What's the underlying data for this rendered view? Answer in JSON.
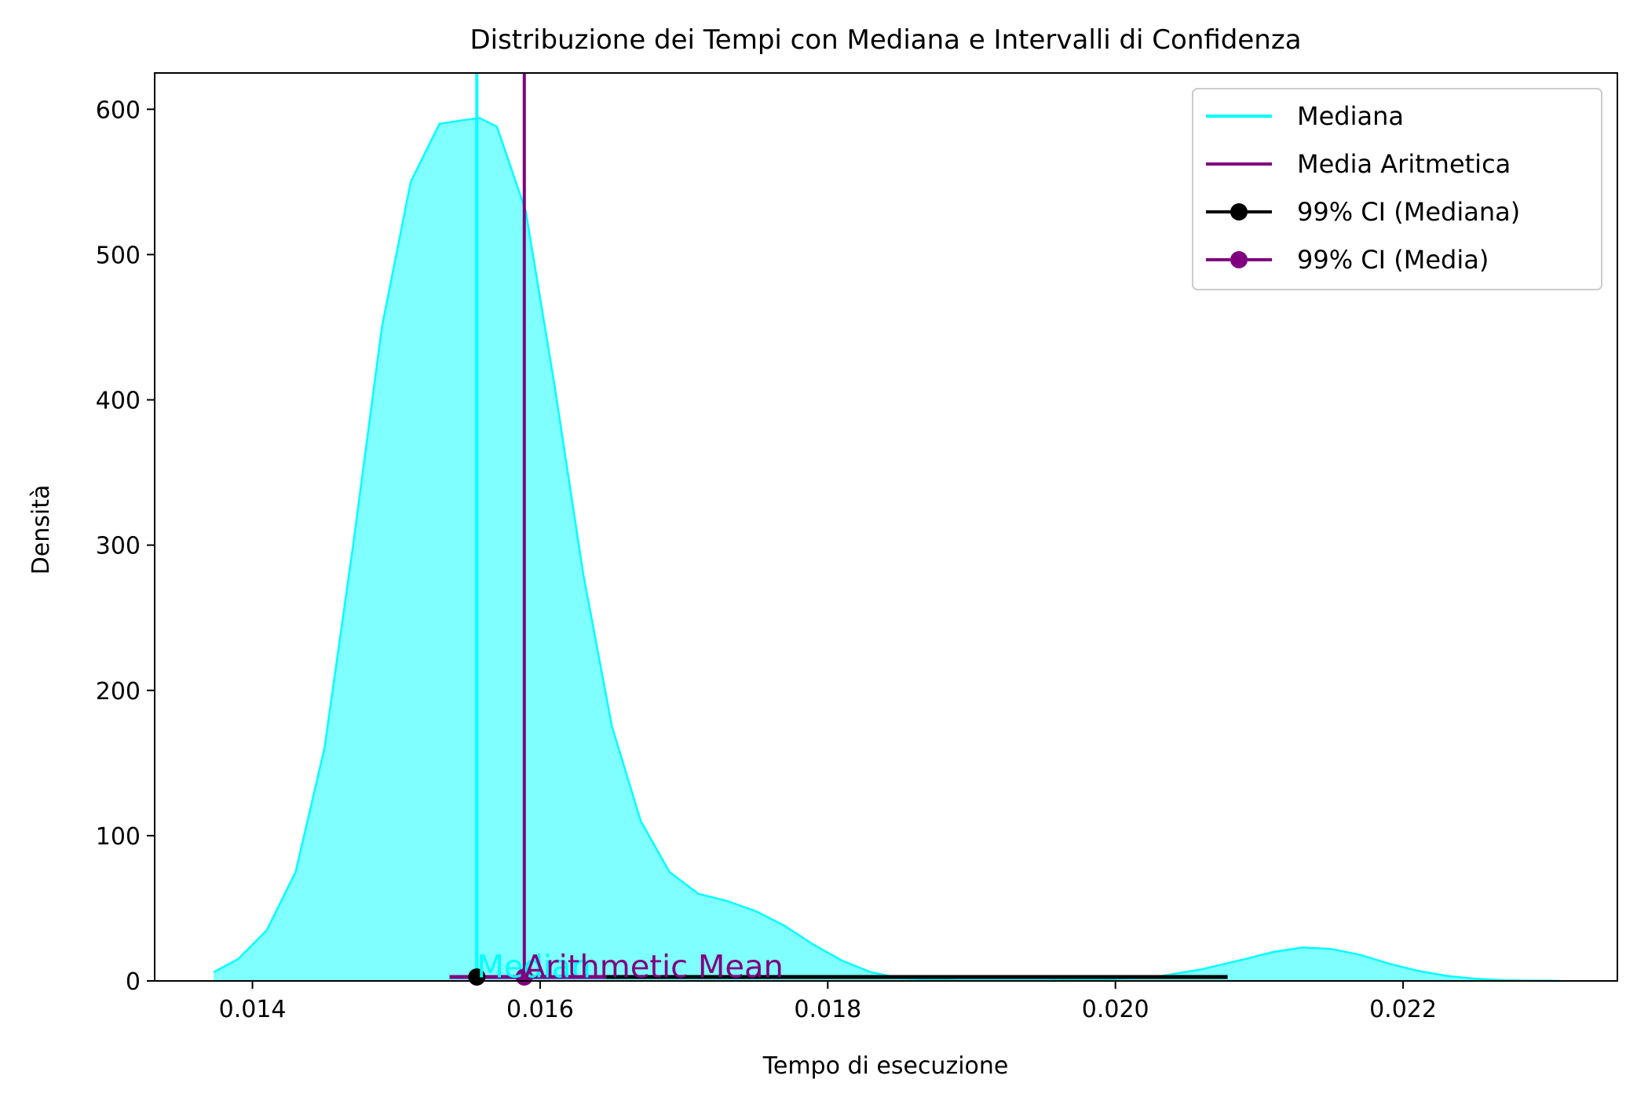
{
  "chart_data": {
    "type": "area",
    "title": "Distribuzione dei Tempi con Mediana e Intervalli di Confidenza",
    "xlabel": "Tempo di esecuzione",
    "ylabel": "Densità",
    "xlim": [
      0.01332,
      0.02349
    ],
    "ylim": [
      0,
      625
    ],
    "x_ticks": [
      0.014,
      0.016,
      0.018,
      0.02,
      0.022
    ],
    "x_tick_labels": [
      "0.014",
      "0.016",
      "0.018",
      "0.020",
      "0.022"
    ],
    "y_ticks": [
      0,
      100,
      200,
      300,
      400,
      500,
      600
    ],
    "y_tick_labels": [
      "0",
      "100",
      "200",
      "300",
      "400",
      "500",
      "600"
    ],
    "grid": false,
    "legend_position": "top-right",
    "density_curve": {
      "color": "#00ffff",
      "fill_alpha": 0.5,
      "x": [
        0.01373,
        0.0139,
        0.0141,
        0.0143,
        0.0145,
        0.0147,
        0.0149,
        0.0151,
        0.0153,
        0.0155,
        0.01558,
        0.0157,
        0.0159,
        0.0161,
        0.0163,
        0.0165,
        0.0167,
        0.0169,
        0.0171,
        0.0173,
        0.0175,
        0.0177,
        0.0179,
        0.0181,
        0.0183,
        0.0185,
        0.0187,
        0.0189,
        0.0191,
        0.0195,
        0.0199,
        0.0203,
        0.0206,
        0.0209,
        0.0211,
        0.0213,
        0.0215,
        0.0217,
        0.0219,
        0.0221,
        0.0223,
        0.0225,
        0.0227,
        0.0229,
        0.02309
      ],
      "y": [
        6,
        15,
        35,
        75,
        160,
        300,
        450,
        550,
        590,
        593,
        594,
        588,
        530,
        410,
        280,
        175,
        110,
        75,
        60,
        55,
        48,
        38,
        25,
        14,
        6,
        2,
        1,
        0.5,
        0.5,
        0.5,
        1,
        3,
        8,
        15,
        20,
        23,
        22,
        18,
        12,
        7,
        3.5,
        1.5,
        0.5,
        0.2,
        0
      ]
    },
    "median": {
      "value": 0.01556,
      "color": "#00ffff",
      "label": "Mediana",
      "ci99": [
        0.01556,
        0.02078
      ]
    },
    "mean": {
      "value": 0.01589,
      "color": "#800080",
      "label": "Media Aritmetica",
      "ci99": [
        0.01537,
        0.01646
      ]
    },
    "annotations": [
      {
        "text": "Median",
        "color": "#00ffff",
        "x": 0.01556,
        "y": 3
      },
      {
        "text": "Arithmetic Mean",
        "color": "#800080",
        "x": 0.01589,
        "y": 3
      }
    ],
    "legend": [
      {
        "label": "Mediana",
        "color": "#00ffff",
        "marker": "line"
      },
      {
        "label": "Media Aritmetica",
        "color": "#800080",
        "marker": "line"
      },
      {
        "label": "99% CI (Mediana)",
        "color": "#000000",
        "marker": "dot-line"
      },
      {
        "label": "99% CI (Media)",
        "color": "#800080",
        "marker": "dot-line"
      }
    ]
  }
}
